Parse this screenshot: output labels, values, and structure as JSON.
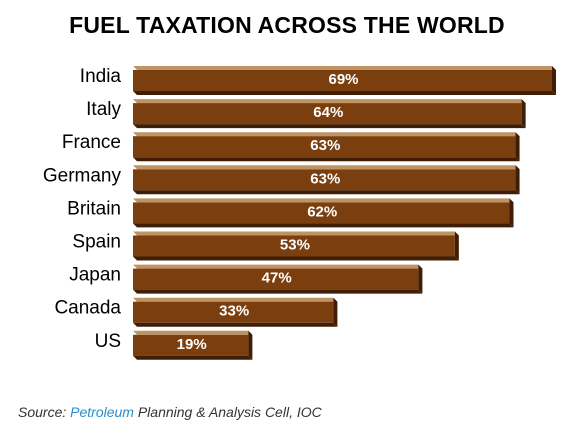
{
  "colors": {
    "bar_face": "#7b3f0f",
    "bar_top": "#c09363",
    "bar_side": "#3f1e05",
    "label_text": "#ffffff",
    "source_highlight": "#2a8fc9"
  },
  "chart_data": {
    "type": "bar",
    "orientation": "horizontal",
    "title": "FUEL TAXATION ACROSS THE WORLD",
    "categories": [
      "India",
      "Italy",
      "France",
      "Germany",
      "Britain",
      "Spain",
      "Japan",
      "Canada",
      "US"
    ],
    "values": [
      69,
      64,
      63,
      63,
      62,
      53,
      47,
      33,
      19
    ],
    "value_labels": [
      "69%",
      "64%",
      "63%",
      "63%",
      "62%",
      "53%",
      "47%",
      "33%",
      "19%"
    ],
    "xlim": [
      0,
      69
    ],
    "grid": false,
    "legend": "none"
  },
  "source": {
    "prefix": "Source: ",
    "highlight": "Petroleum",
    "suffix": " Planning & Analysis Cell, IOC"
  }
}
